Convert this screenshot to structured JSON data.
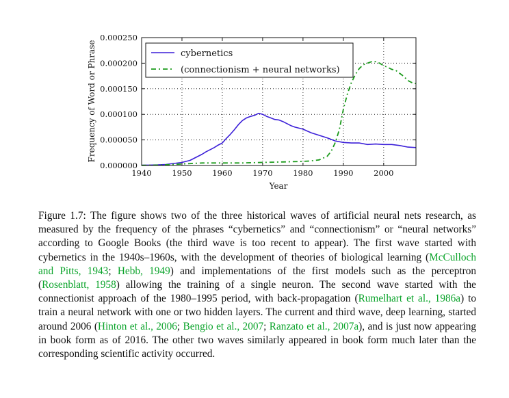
{
  "chart_data": {
    "type": "line",
    "xlabel": "Year",
    "ylabel": "Frequency of Word or Phrase",
    "xlim": [
      1940,
      2008
    ],
    "ylim": [
      0,
      0.00025
    ],
    "xticks": [
      1940,
      1950,
      1960,
      1970,
      1980,
      1990,
      2000
    ],
    "xtick_labels": [
      "1940",
      "1950",
      "1960",
      "1970",
      "1980",
      "1990",
      "2000"
    ],
    "yticks": [
      0,
      5e-05,
      0.0001,
      0.00015,
      0.0002,
      0.00025
    ],
    "ytick_labels": [
      "0.000000",
      "0.000050",
      "0.000100",
      "0.000150",
      "0.000200",
      "0.000250"
    ],
    "grid": true,
    "legend": "top-left",
    "series": [
      {
        "name": "cybernetics",
        "color": "#3b1fd8",
        "style": "solid",
        "x": [
          1940,
          1942,
          1944,
          1946,
          1948,
          1950,
          1952,
          1953,
          1954,
          1955,
          1956,
          1957,
          1958,
          1959,
          1960,
          1961,
          1962,
          1963,
          1964,
          1965,
          1966,
          1967,
          1968,
          1969,
          1970,
          1971,
          1972,
          1973,
          1974,
          1975,
          1976,
          1977,
          1978,
          1979,
          1980,
          1982,
          1984,
          1986,
          1988,
          1990,
          1992,
          1994,
          1996,
          1998,
          2000,
          2002,
          2004,
          2006,
          2008
        ],
        "y": [
          5e-07,
          8e-07,
          1.2e-06,
          2e-06,
          4e-06,
          6e-06,
          1e-05,
          1.4e-05,
          1.8e-05,
          2.2e-05,
          2.7e-05,
          3.1e-05,
          3.5e-05,
          4e-05,
          4.4e-05,
          5.3e-05,
          6.1e-05,
          7e-05,
          8e-05,
          8.8e-05,
          9.3e-05,
          9.6e-05,
          9.8e-05,
          0.000102,
          0.0001,
          9.6e-05,
          9.3e-05,
          9e-05,
          8.9e-05,
          8.6e-05,
          8.2e-05,
          7.8e-05,
          7.5e-05,
          7.3e-05,
          7.1e-05,
          6.4e-05,
          5.9e-05,
          5.4e-05,
          4.8e-05,
          4.5e-05,
          4.4e-05,
          4.4e-05,
          4.1e-05,
          4.2e-05,
          4.1e-05,
          4.1e-05,
          3.9e-05,
          3.6e-05,
          3.5e-05
        ]
      },
      {
        "name": "(connectionism + neural networks)",
        "color": "#1a9a1a",
        "style": "dashed",
        "x": [
          1940,
          1945,
          1950,
          1955,
          1960,
          1965,
          1970,
          1975,
          1980,
          1982,
          1984,
          1986,
          1987,
          1988,
          1989,
          1990,
          1991,
          1992,
          1993,
          1994,
          1995,
          1996,
          1997,
          1998,
          1999,
          2000,
          2001,
          2002,
          2003,
          2004,
          2005,
          2006,
          2007,
          2008
        ],
        "y": [
          3e-07,
          1e-06,
          3e-06,
          5e-06,
          5e-06,
          5e-06,
          6e-06,
          7e-06,
          8e-06,
          9e-06,
          1.1e-05,
          1.8e-05,
          2.8e-05,
          4.5e-05,
          7e-05,
          0.00011,
          0.00014,
          0.000162,
          0.000178,
          0.00019,
          0.000197,
          0.0002,
          0.000203,
          0.000203,
          0.0002,
          0.000195,
          0.000192,
          0.000188,
          0.000186,
          0.00018,
          0.000174,
          0.000166,
          0.000162,
          0.00016
        ]
      }
    ]
  },
  "caption": {
    "label": "Figure 1.7:",
    "t1": " The figure shows two of the three historical waves of artificial neural nets research, as measured by the frequency of the phrases “cybernetics” and “connectionism” or “neural networks” according to Google Books (the third wave is too recent to appear). The first wave started with cybernetics in the 1940s–1960s, with the development of theories of biological learning (",
    "c1": "McCulloch and Pitts, 1943",
    "s1": "; ",
    "c2": "Hebb, 1949",
    "t2": ") and implementations of the first models such as the perceptron (",
    "c3": "Rosenblatt, 1958",
    "t3": ") allowing the training of a single neuron. The second wave started with the connectionist approach of the 1980–1995 period, with back-propagation (",
    "c4": "Rumelhart et al., 1986a",
    "t4": ") to train a neural network with one or two hidden layers. The current and third wave, deep learning, started around 2006 (",
    "c5": "Hinton et al., 2006",
    "s5": "; ",
    "c6": "Bengio et al., 2007",
    "s6": "; ",
    "c7": "Ranzato et al., 2007a",
    "t7": "), and is just now appearing in book form as of 2016. The other two waves similarly appeared in book form much later than the corresponding scientific activity occurred."
  }
}
